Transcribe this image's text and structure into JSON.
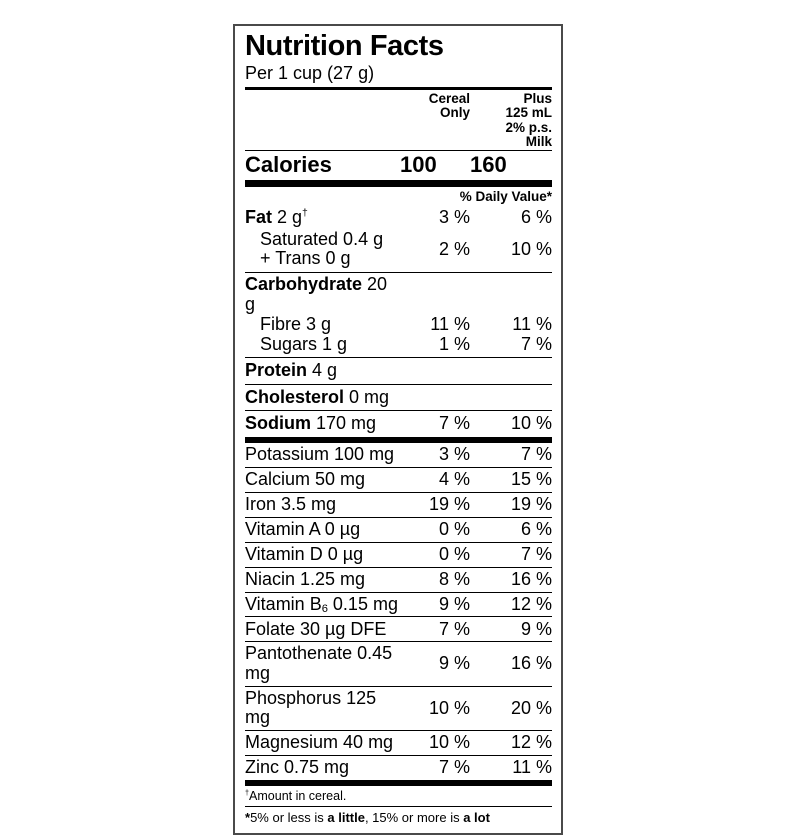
{
  "colors": {
    "paper": "#ffffff",
    "ink": "#000000",
    "border": "#4a4a4a"
  },
  "header": {
    "title": "Nutrition Facts",
    "serving": "Per 1 cup (27 g)"
  },
  "columns": {
    "cereal": "Cereal\nOnly",
    "milk": "Plus\n125 mL\n2% p.s.\nMilk"
  },
  "calories": {
    "label": "Calories",
    "cereal": "100",
    "milk": "160"
  },
  "daily_value_header": "% Daily Value*",
  "rows": [
    {
      "id": "fat",
      "bold": "Fat",
      "text": " 2 g",
      "sup": "†",
      "cereal": "3 %",
      "milk": "6 %",
      "style": "fat",
      "sep": "none"
    },
    {
      "id": "saturated-trans",
      "text": "Saturated 0.4 g\n+ Trans 0 g",
      "indent": true,
      "cereal": "2 %",
      "milk": "10 %",
      "style": "sat",
      "sep": "thin"
    },
    {
      "id": "carbohydrate",
      "bold": "Carbohydrate",
      "text": " 20 g",
      "cereal": "",
      "milk": "",
      "style": "carb",
      "sep": "none"
    },
    {
      "id": "fibre",
      "text": "Fibre 3 g",
      "indent": true,
      "cereal": "11 %",
      "milk": "11 %",
      "style": "sub",
      "sep": "none"
    },
    {
      "id": "sugars",
      "text": "Sugars 1 g",
      "indent": true,
      "cereal": "1 %",
      "milk": "7 %",
      "style": "sub2",
      "sep": "thin"
    },
    {
      "id": "protein",
      "bold": "Protein",
      "text": " 4 g",
      "cereal": "",
      "milk": "",
      "style": "main",
      "sep": "thin"
    },
    {
      "id": "cholesterol",
      "bold": "Cholesterol",
      "text": " 0 mg",
      "cereal": "",
      "milk": "",
      "style": "main",
      "sep": "thin"
    },
    {
      "id": "sodium",
      "bold": "Sodium",
      "text": " 170 mg",
      "cereal": "7 %",
      "milk": "10 %",
      "style": "sodium",
      "sep": "thick"
    },
    {
      "id": "potassium",
      "text": "Potassium 100 mg",
      "cereal": "3 %",
      "milk": "7 %",
      "style": "min",
      "sep": "thin"
    },
    {
      "id": "calcium",
      "text": "Calcium 50 mg",
      "cereal": "4 %",
      "milk": "15 %",
      "style": "min",
      "sep": "thin"
    },
    {
      "id": "iron",
      "text": "Iron 3.5 mg",
      "cereal": "19 %",
      "milk": "19 %",
      "style": "min",
      "sep": "thin"
    },
    {
      "id": "vitamin-a",
      "text": "Vitamin A 0 µg",
      "cereal": "0 %",
      "milk": "6 %",
      "style": "min",
      "sep": "thin"
    },
    {
      "id": "vitamin-d",
      "text": "Vitamin D 0 µg",
      "cereal": "0 %",
      "milk": "7 %",
      "style": "min",
      "sep": "thin"
    },
    {
      "id": "niacin",
      "text": "Niacin 1.25 mg",
      "cereal": "8 %",
      "milk": "16 %",
      "style": "min",
      "sep": "thin"
    },
    {
      "id": "vitamin-b6",
      "text": "Vitamin B",
      "sub": "6",
      "text2": " 0.15 mg",
      "cereal": "9 %",
      "milk": "12 %",
      "style": "min",
      "sep": "thin"
    },
    {
      "id": "folate",
      "text": "Folate 30 µg DFE",
      "cereal": "7 %",
      "milk": "9 %",
      "style": "min",
      "sep": "thin"
    },
    {
      "id": "pantothenate",
      "text": "Pantothenate 0.45 mg",
      "cereal": "9 %",
      "milk": "16 %",
      "style": "min",
      "sep": "thin"
    },
    {
      "id": "phosphorus",
      "text": "Phosphorus 125 mg",
      "cereal": "10 %",
      "milk": "20 %",
      "style": "min",
      "sep": "thin"
    },
    {
      "id": "magnesium",
      "text": "Magnesium 40 mg",
      "cereal": "10 %",
      "milk": "12 %",
      "style": "min",
      "sep": "thin"
    },
    {
      "id": "zinc",
      "text": "Zinc 0.75 mg",
      "cereal": "7 %",
      "milk": "11 %",
      "style": "min",
      "sep": "thick"
    }
  ],
  "footnotes": {
    "dagger": {
      "sup": "†",
      "text": "Amount in cereal."
    },
    "star_parts": [
      {
        "b": "*"
      },
      {
        "t": "5% or less is "
      },
      {
        "b": "a little"
      },
      {
        "t": ", 15% or more is "
      },
      {
        "b": "a lot"
      }
    ]
  }
}
